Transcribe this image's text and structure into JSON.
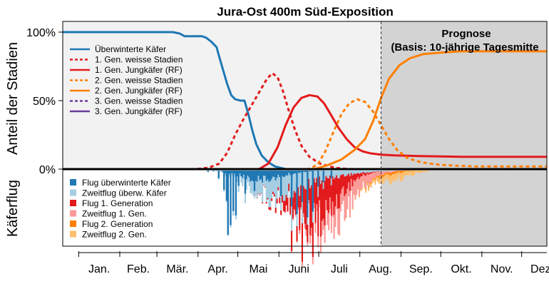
{
  "chart_data": {
    "type": "line",
    "title": "Jura-Ost 400m Süd-Exposition",
    "ylabel_top": "Anteil der Stadien",
    "ylabel_bottom": "Käferflug",
    "yticks": [
      {
        "value": 100,
        "label": "100%"
      },
      {
        "value": 50,
        "label": "50%"
      },
      {
        "value": 0,
        "label": "0%"
      }
    ],
    "ylim": [
      0,
      100
    ],
    "xlim": [
      0,
      365
    ],
    "months": [
      {
        "label": "Jan.",
        "start": 0,
        "end": 31
      },
      {
        "label": "Feb.",
        "start": 31,
        "end": 59
      },
      {
        "label": "Mär.",
        "start": 59,
        "end": 90
      },
      {
        "label": "Apr.",
        "start": 90,
        "end": 120
      },
      {
        "label": "Mai",
        "start": 120,
        "end": 151
      },
      {
        "label": "Juni",
        "start": 151,
        "end": 181
      },
      {
        "label": "Juli",
        "start": 181,
        "end": 212
      },
      {
        "label": "Aug.",
        "start": 212,
        "end": 243
      },
      {
        "label": "Sep.",
        "start": 243,
        "end": 273
      },
      {
        "label": "Okt.",
        "start": 273,
        "end": 304
      },
      {
        "label": "Nov.",
        "start": 304,
        "end": 334
      },
      {
        "label": "Dez.",
        "start": 334,
        "end": 365
      }
    ],
    "forecast": {
      "start_day": 240,
      "label_line1": "Prognose",
      "label_line2": "(Basis: 10-jährige Tagesmitte",
      "shade_color": "#d3d3d3"
    },
    "series": [
      {
        "name": "Überwinterte Käfer",
        "color": "#1f78b4",
        "dash": "solid",
        "points": [
          [
            0,
            100
          ],
          [
            83,
            100
          ],
          [
            88,
            99
          ],
          [
            92,
            97
          ],
          [
            105,
            97
          ],
          [
            108,
            96
          ],
          [
            112,
            93
          ],
          [
            116,
            89
          ],
          [
            118,
            82
          ],
          [
            121,
            72
          ],
          [
            124,
            62
          ],
          [
            127,
            54
          ],
          [
            130,
            51
          ],
          [
            134,
            50
          ],
          [
            137,
            50
          ],
          [
            140,
            40
          ],
          [
            143,
            28
          ],
          [
            146,
            18
          ],
          [
            150,
            10
          ],
          [
            155,
            5
          ],
          [
            160,
            2
          ],
          [
            168,
            0
          ],
          [
            365,
            0
          ]
        ]
      },
      {
        "name": "1. Gen. weisse Stadien",
        "color": "#e31a1c",
        "dash": "dotted",
        "points": [
          [
            0,
            0
          ],
          [
            100,
            0
          ],
          [
            110,
            1
          ],
          [
            118,
            4
          ],
          [
            124,
            12
          ],
          [
            130,
            25
          ],
          [
            136,
            36
          ],
          [
            142,
            46
          ],
          [
            148,
            56
          ],
          [
            154,
            66
          ],
          [
            158,
            70
          ],
          [
            162,
            67
          ],
          [
            166,
            57
          ],
          [
            170,
            44
          ],
          [
            175,
            29
          ],
          [
            180,
            17
          ],
          [
            186,
            9
          ],
          [
            194,
            4
          ],
          [
            205,
            1
          ],
          [
            215,
            0
          ],
          [
            365,
            0
          ]
        ]
      },
      {
        "name": "1. Gen. Jungkäfer (RF)",
        "color": "#e31a1c",
        "dash": "solid",
        "points": [
          [
            0,
            0
          ],
          [
            148,
            0
          ],
          [
            155,
            4
          ],
          [
            162,
            16
          ],
          [
            168,
            32
          ],
          [
            174,
            45
          ],
          [
            180,
            52
          ],
          [
            186,
            54
          ],
          [
            192,
            53
          ],
          [
            197,
            48
          ],
          [
            202,
            40
          ],
          [
            208,
            30
          ],
          [
            214,
            22
          ],
          [
            220,
            16
          ],
          [
            226,
            13
          ],
          [
            232,
            11.5
          ],
          [
            240,
            10.5
          ],
          [
            250,
            10
          ],
          [
            270,
            9.5
          ],
          [
            300,
            9
          ],
          [
            365,
            9
          ]
        ]
      },
      {
        "name": "2. Gen. weisse Stadien",
        "color": "#ff7f00",
        "dash": "dotted",
        "points": [
          [
            0,
            0
          ],
          [
            185,
            0
          ],
          [
            192,
            3
          ],
          [
            198,
            13
          ],
          [
            204,
            27
          ],
          [
            210,
            40
          ],
          [
            216,
            48
          ],
          [
            222,
            51
          ],
          [
            228,
            49
          ],
          [
            234,
            42
          ],
          [
            240,
            32
          ],
          [
            246,
            22
          ],
          [
            252,
            14
          ],
          [
            260,
            8
          ],
          [
            270,
            5
          ],
          [
            285,
            3
          ],
          [
            310,
            2
          ],
          [
            365,
            2
          ]
        ]
      },
      {
        "name": "2. Gen. Jungkäfer (RF)",
        "color": "#ff7f00",
        "dash": "solid",
        "points": [
          [
            0,
            0
          ],
          [
            190,
            0
          ],
          [
            200,
            3
          ],
          [
            210,
            7
          ],
          [
            220,
            14
          ],
          [
            228,
            22
          ],
          [
            234,
            35
          ],
          [
            240,
            52
          ],
          [
            246,
            66
          ],
          [
            254,
            76
          ],
          [
            262,
            81
          ],
          [
            272,
            84
          ],
          [
            285,
            85
          ],
          [
            300,
            86
          ],
          [
            330,
            86
          ],
          [
            365,
            86
          ]
        ]
      },
      {
        "name": "3. Gen. weisse Stadien",
        "color": "#6a3d9a",
        "dash": "dotted",
        "points": [
          [
            0,
            0
          ],
          [
            365,
            0
          ]
        ]
      },
      {
        "name": "3. Gen. Jungkäfer (RF)",
        "color": "#6a3d9a",
        "dash": "solid",
        "points": [
          [
            0,
            0
          ],
          [
            365,
            0
          ]
        ]
      }
    ],
    "flight": {
      "legend": [
        {
          "name": "Flug überwinterte Käfer",
          "color": "#1f78b4"
        },
        {
          "name": "Zweitflug überw. Käfer",
          "color": "#a6cee3"
        },
        {
          "name": "Flug 1. Generation",
          "color": "#e31a1c"
        },
        {
          "name": "Zweitflug 1. Gen.",
          "color": "#fb9a99"
        },
        {
          "name": "Flug 2. Generation",
          "color": "#ff7f00"
        },
        {
          "name": "Zweitflug 2. Gen.",
          "color": "#fdbf6f"
        }
      ],
      "spikes": [
        [
          109,
          2
        ],
        [
          113,
          1
        ],
        [
          117,
          12
        ],
        [
          121,
          30
        ],
        [
          123,
          47
        ],
        [
          124,
          100
        ],
        [
          126,
          85
        ],
        [
          128,
          63
        ],
        [
          130,
          70
        ],
        [
          132,
          24
        ],
        [
          137,
          36
        ],
        [
          141,
          17
        ],
        [
          144,
          32
        ],
        [
          147,
          8
        ],
        [
          156,
          16
        ],
        [
          164,
          40
        ],
        [
          172,
          56
        ],
        [
          176,
          68
        ],
        [
          180,
          49
        ],
        [
          184,
          73
        ],
        [
          188,
          64
        ],
        [
          192,
          25
        ],
        [
          196,
          18
        ],
        [
          202,
          12
        ]
      ]
    }
  }
}
